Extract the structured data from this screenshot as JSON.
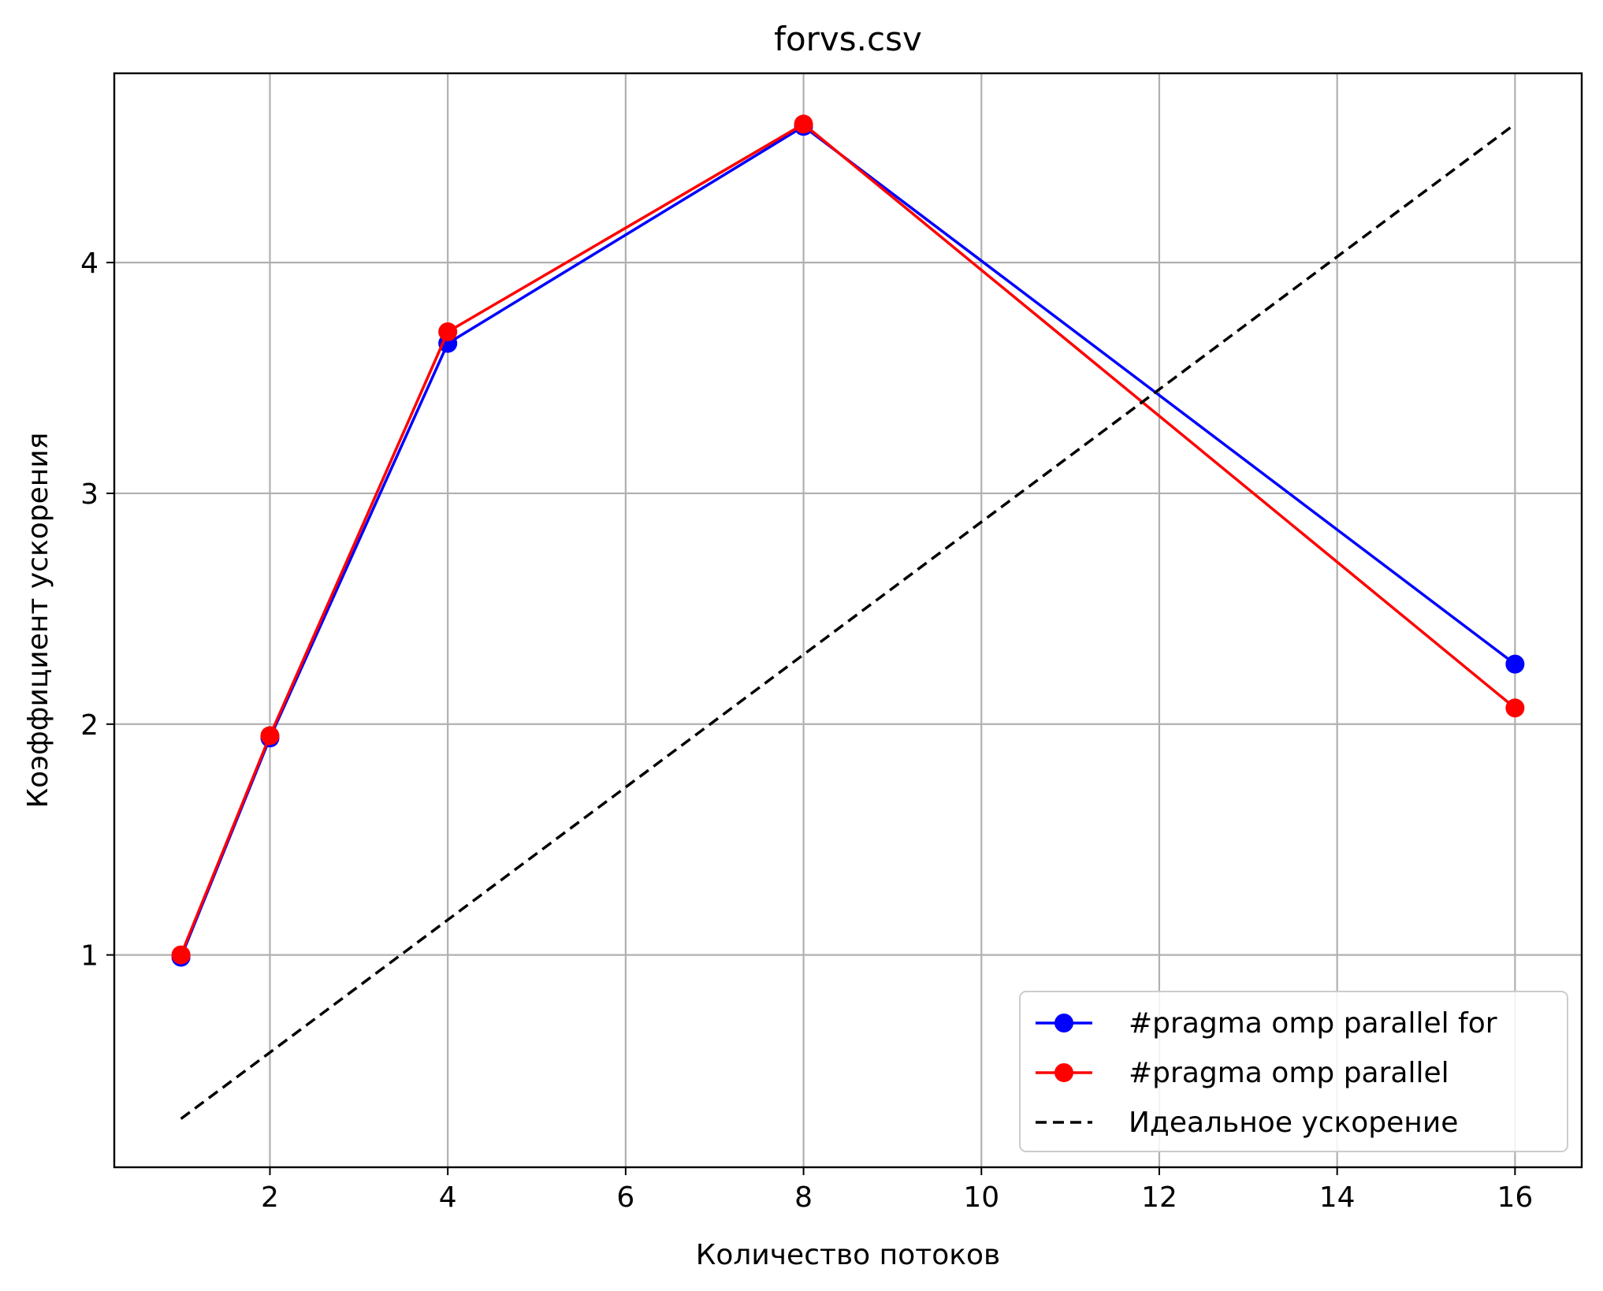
{
  "chart_data": {
    "type": "line",
    "title": "forvs.csv",
    "xlabel": "Количество потоков",
    "ylabel": "Коэффициент ускорения",
    "xlim": [
      0.25,
      16.75
    ],
    "ylim": [
      0.08,
      4.82
    ],
    "xticks": [
      2,
      4,
      6,
      8,
      10,
      12,
      14,
      16
    ],
    "yticks": [
      1,
      2,
      3,
      4
    ],
    "grid": true,
    "legend_position": "lower right",
    "series": [
      {
        "name": "#pragma omp parallel for",
        "color": "#0000ff",
        "style": "solid",
        "marker": "circle",
        "x": [
          1,
          2,
          4,
          8,
          16
        ],
        "y": [
          0.99,
          1.94,
          3.65,
          4.59,
          2.26
        ]
      },
      {
        "name": "#pragma omp parallel",
        "color": "#ff0000",
        "style": "solid",
        "marker": "circle",
        "x": [
          1,
          2,
          4,
          8,
          16
        ],
        "y": [
          1.0,
          1.95,
          3.7,
          4.6,
          2.07
        ]
      },
      {
        "name": "Идеальное ускорение",
        "color": "#000000",
        "style": "dashed",
        "marker": "none",
        "x": [
          1,
          16
        ],
        "y": [
          0.29,
          4.6
        ]
      }
    ]
  }
}
